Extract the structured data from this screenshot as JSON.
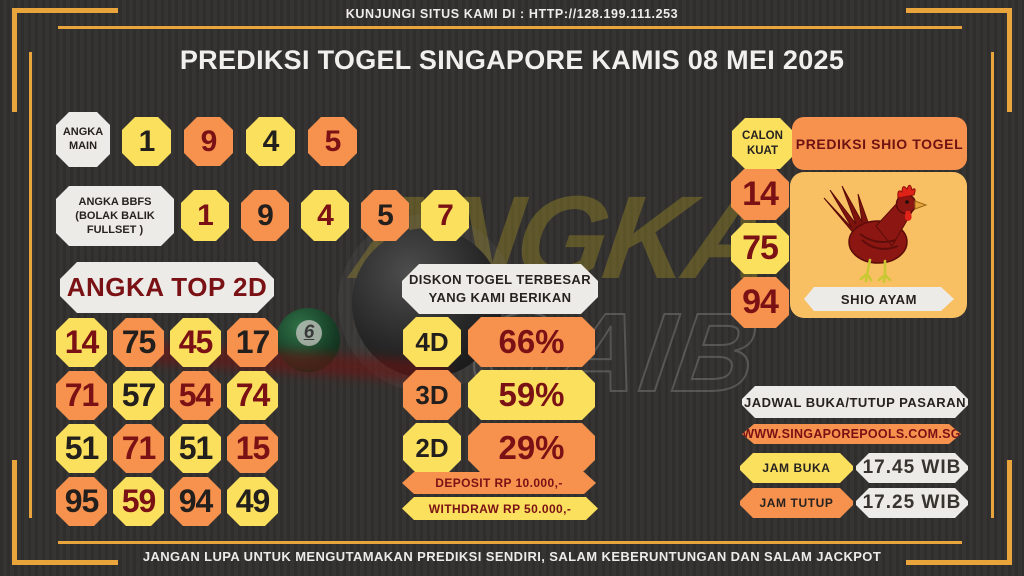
{
  "colors": {
    "background": "#33312F",
    "gold": "#E9A43C",
    "yellow": "#FBE05E",
    "orange": "#F6914E",
    "maroon": "#7A1114",
    "offwhite": "#EDEBE7",
    "ink": "#221F1D",
    "amber": "#F8C063"
  },
  "page": {
    "top_banner": "KUNJUNGI SITUS KAMI DI : HTTP://128.199.111.253",
    "title": "PREDIKSI TOGEL SINGAPORE KAMIS 08 MEI 2025",
    "footer": "JANGAN LUPA UNTUK MENGUTAMAKAN PREDIKSI SENDIRI, SALAM KEBERUNTUNGAN DAN SALAM JACKPOT"
  },
  "watermark": {
    "line1": "ANGKA",
    "line2": "GAIB"
  },
  "billiard": {
    "six_ball_number": "6"
  },
  "angka_main": {
    "label": [
      "ANGKA",
      "MAIN"
    ],
    "numbers": [
      {
        "value": "1",
        "bg": "yellow",
        "fg": "black"
      },
      {
        "value": "9",
        "bg": "orange",
        "fg": "maroon"
      },
      {
        "value": "4",
        "bg": "yellow",
        "fg": "black"
      },
      {
        "value": "5",
        "bg": "orange",
        "fg": "maroon"
      }
    ]
  },
  "angka_bbfs": {
    "label": [
      "ANGKA BBFS",
      "(BOLAK BALIK",
      "FULLSET )"
    ],
    "numbers": [
      {
        "value": "1",
        "bg": "yellow",
        "fg": "maroon"
      },
      {
        "value": "9",
        "bg": "orange",
        "fg": "black"
      },
      {
        "value": "4",
        "bg": "yellow",
        "fg": "maroon"
      },
      {
        "value": "5",
        "bg": "orange",
        "fg": "black"
      },
      {
        "value": "7",
        "bg": "yellow",
        "fg": "maroon"
      }
    ]
  },
  "angka_top_2d": {
    "title": "ANGKA TOP 2D",
    "rows": [
      [
        {
          "value": "14",
          "bg": "yellow",
          "fg": "maroon"
        },
        {
          "value": "75",
          "bg": "orange",
          "fg": "black"
        },
        {
          "value": "45",
          "bg": "yellow",
          "fg": "maroon"
        },
        {
          "value": "17",
          "bg": "orange",
          "fg": "black"
        }
      ],
      [
        {
          "value": "71",
          "bg": "orange",
          "fg": "maroon"
        },
        {
          "value": "57",
          "bg": "yellow",
          "fg": "black"
        },
        {
          "value": "54",
          "bg": "orange",
          "fg": "maroon"
        },
        {
          "value": "74",
          "bg": "yellow",
          "fg": "maroon"
        }
      ],
      [
        {
          "value": "51",
          "bg": "yellow",
          "fg": "black"
        },
        {
          "value": "71",
          "bg": "orange",
          "fg": "maroon"
        },
        {
          "value": "51",
          "bg": "yellow",
          "fg": "black"
        },
        {
          "value": "15",
          "bg": "orange",
          "fg": "maroon"
        }
      ],
      [
        {
          "value": "95",
          "bg": "orange",
          "fg": "black"
        },
        {
          "value": "59",
          "bg": "yellow",
          "fg": "maroon"
        },
        {
          "value": "94",
          "bg": "orange",
          "fg": "black"
        },
        {
          "value": "49",
          "bg": "yellow",
          "fg": "black"
        }
      ]
    ]
  },
  "diskon": {
    "title": [
      "DISKON TOGEL TERBESAR",
      "YANG KAMI BERIKAN"
    ],
    "rows": [
      {
        "label": "4D",
        "value": "66%",
        "label_bg": "yellow",
        "value_bg": "orange"
      },
      {
        "label": "3D",
        "value": "59%",
        "label_bg": "orange",
        "value_bg": "yellow"
      },
      {
        "label": "2D",
        "value": "29%",
        "label_bg": "yellow",
        "value_bg": "orange"
      }
    ],
    "deposit": "DEPOSIT RP 10.000,-",
    "withdraw": "WITHDRAW RP 50.000,-"
  },
  "shio": {
    "calon_kuat": [
      "CALON",
      "KUAT"
    ],
    "header": "PREDIKSI SHIO TOGEL",
    "numbers": [
      {
        "value": "14",
        "bg": "orange",
        "fg": "maroon"
      },
      {
        "value": "75",
        "bg": "yellow",
        "fg": "maroon"
      },
      {
        "value": "94",
        "bg": "orange",
        "fg": "maroon"
      }
    ],
    "animal_label": "SHIO AYAM"
  },
  "jadwal": {
    "title": "JADWAL BUKA/TUTUP PASARAN",
    "website": "WWW.SINGAPOREPOOLS.COM.SG",
    "rows": [
      {
        "label": "JAM BUKA",
        "value": "17.45 WIB",
        "label_bg": "yellow"
      },
      {
        "label": "JAM TUTUP",
        "value": "17.25 WIB",
        "label_bg": "orange"
      }
    ]
  }
}
